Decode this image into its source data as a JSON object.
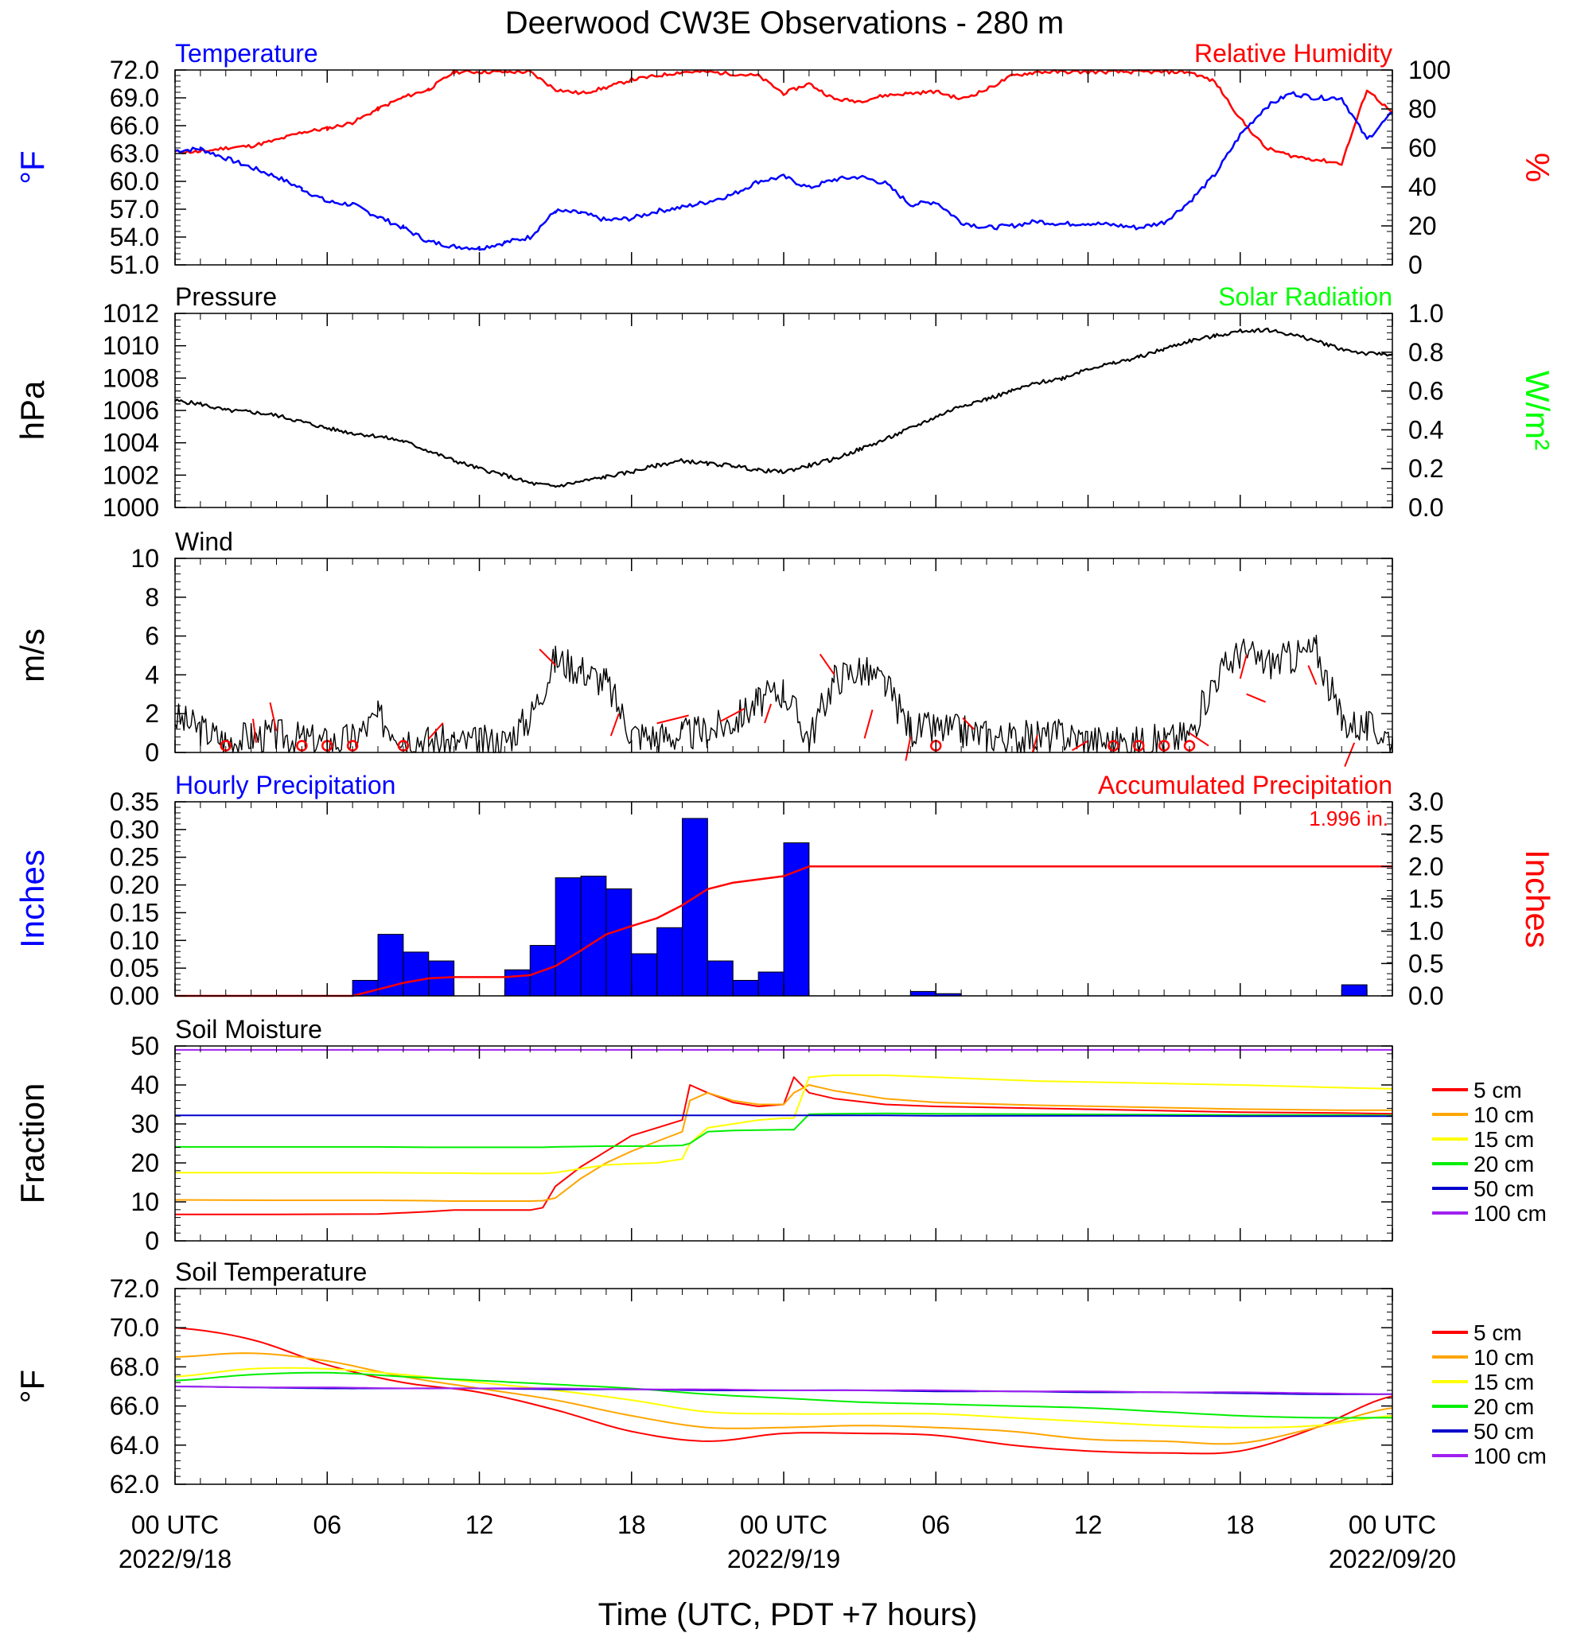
{
  "title": "Deerwood CW3E Observations - 280 m",
  "x_axis": {
    "label": "Time (UTC, PDT +7 hours)",
    "ticks": [
      {
        "hour": 0,
        "label": "00 UTC",
        "sub": "2022/9/18"
      },
      {
        "hour": 6,
        "label": "06",
        "sub": ""
      },
      {
        "hour": 12,
        "label": "12",
        "sub": ""
      },
      {
        "hour": 18,
        "label": "18",
        "sub": ""
      },
      {
        "hour": 24,
        "label": "00 UTC",
        "sub": "2022/9/19"
      },
      {
        "hour": 30,
        "label": "06",
        "sub": ""
      },
      {
        "hour": 36,
        "label": "12",
        "sub": ""
      },
      {
        "hour": 42,
        "label": "18",
        "sub": ""
      },
      {
        "hour": 48,
        "label": "00 UTC",
        "sub": "2022/09/20"
      }
    ]
  },
  "colors": {
    "temperature": "#0000ff",
    "humidity": "#ff0000",
    "pressure": "#000000",
    "solar": "#00ff00",
    "wind": "#000000",
    "wind_barb": "#ff0000",
    "hourly_precip": "#0000ff",
    "accum_precip": "#ff0000",
    "depth_5": "#ff0000",
    "depth_10": "#ffa500",
    "depth_15": "#ffff00",
    "depth_20": "#00ee00",
    "depth_50": "#0000cc",
    "depth_100": "#a020f0"
  },
  "panels": {
    "temp_rh": {
      "left_title": "Temperature",
      "right_title": "Relative Humidity",
      "left_unit": "°F",
      "right_unit": "%",
      "left_ticks": [
        "72.0",
        "69.0",
        "66.0",
        "63.0",
        "60.0",
        "57.0",
        "54.0",
        "51.0"
      ],
      "right_ticks": [
        "100",
        "80",
        "60",
        "40",
        "20",
        "0"
      ]
    },
    "pressure": {
      "left_title": "Pressure",
      "right_title": "Solar Radiation",
      "left_unit": "hPa",
      "right_unit": "W/m²",
      "left_ticks": [
        "1012",
        "1010",
        "1008",
        "1006",
        "1004",
        "1002",
        "1000"
      ],
      "right_ticks": [
        "1.0",
        "0.8",
        "0.6",
        "0.4",
        "0.2",
        "0.0"
      ]
    },
    "wind": {
      "left_title": "Wind",
      "left_unit": "m/s",
      "left_ticks": [
        "10",
        "8",
        "6",
        "4",
        "2",
        "0"
      ]
    },
    "precip": {
      "left_title": "Hourly Precipitation",
      "right_title": "Accumulated Precipitation",
      "total": "1.996 in.",
      "left_unit": "Inches",
      "right_unit": "Inches",
      "left_ticks": [
        "0.35",
        "0.30",
        "0.25",
        "0.20",
        "0.15",
        "0.10",
        "0.05",
        "0.00"
      ],
      "right_ticks": [
        "3.0",
        "2.5",
        "2.0",
        "1.5",
        "1.0",
        "0.5",
        "0.0"
      ]
    },
    "soil_moisture": {
      "left_title": "Soil Moisture",
      "left_unit": "Fraction",
      "left_ticks": [
        "50",
        "40",
        "30",
        "20",
        "10",
        "0"
      ],
      "legend": [
        "5 cm",
        "10 cm",
        "15 cm",
        "20 cm",
        "50 cm",
        "100 cm"
      ]
    },
    "soil_temp": {
      "left_title": "Soil Temperature",
      "left_unit": "°F",
      "left_ticks": [
        "72.0",
        "70.0",
        "68.0",
        "66.0",
        "64.0",
        "62.0"
      ],
      "legend": [
        "5 cm",
        "10 cm",
        "15 cm",
        "20 cm",
        "50 cm",
        "100 cm"
      ]
    }
  },
  "chart_data": [
    {
      "type": "line",
      "title": "Temperature / Relative Humidity",
      "x_hours": [
        0,
        1,
        2,
        3,
        4,
        5,
        6,
        7,
        8,
        9,
        10,
        11,
        12,
        13,
        14,
        15,
        16,
        17,
        18,
        19,
        20,
        21,
        22,
        23,
        24,
        25,
        26,
        27,
        28,
        29,
        30,
        31,
        32,
        33,
        34,
        35,
        36,
        37,
        38,
        39,
        40,
        41,
        42,
        43,
        44,
        45,
        46,
        47,
        48
      ],
      "series": [
        {
          "name": "Temperature",
          "axis": "left",
          "unit": "°F",
          "ylim": [
            51,
            72
          ],
          "values": [
            63.3,
            63.5,
            62.5,
            61.5,
            60.5,
            59.2,
            57.8,
            57.5,
            56.2,
            55.0,
            53.5,
            53.0,
            52.8,
            53.4,
            54.0,
            56.8,
            56.6,
            55.8,
            56.0,
            56.8,
            57.2,
            57.8,
            58.6,
            60.0,
            60.5,
            59.3,
            60.2,
            60.5,
            59.8,
            57.5,
            57.8,
            55.6,
            55.0,
            55.2,
            55.7,
            55.4,
            55.5,
            55.3,
            55.0,
            55.6,
            57.8,
            60.7,
            65.0,
            68.0,
            69.5,
            69.0,
            69.0,
            64.5,
            67.4
          ]
        },
        {
          "name": "Relative Humidity",
          "axis": "right",
          "unit": "%",
          "ylim": [
            0,
            100
          ],
          "values": [
            58,
            58,
            60,
            61,
            64,
            68,
            70,
            73,
            80,
            86,
            90,
            99,
            99,
            99,
            99,
            90,
            88,
            91,
            95,
            97,
            99,
            99,
            98,
            97,
            88,
            93,
            85,
            84,
            87,
            88,
            89,
            85,
            90,
            97,
            99,
            99,
            99,
            99,
            99,
            99,
            99,
            94,
            75,
            60,
            56,
            54,
            52,
            90,
            78
          ]
        }
      ]
    },
    {
      "type": "line",
      "title": "Pressure / Solar Radiation",
      "x_hours": [
        0,
        1,
        2,
        3,
        4,
        5,
        6,
        7,
        8,
        9,
        10,
        11,
        12,
        13,
        14,
        15,
        16,
        17,
        18,
        19,
        20,
        21,
        22,
        23,
        24,
        25,
        26,
        27,
        28,
        29,
        30,
        31,
        32,
        33,
        34,
        35,
        36,
        37,
        38,
        39,
        40,
        41,
        42,
        43,
        44,
        45,
        46,
        47,
        48
      ],
      "series": [
        {
          "name": "Pressure",
          "axis": "left",
          "unit": "hPa",
          "ylim": [
            1000,
            1012
          ],
          "values": [
            1006.6,
            1006.4,
            1006.0,
            1005.9,
            1005.7,
            1005.3,
            1004.9,
            1004.6,
            1004.4,
            1004.1,
            1003.5,
            1002.9,
            1002.4,
            1002.0,
            1001.5,
            1001.3,
            1001.6,
            1001.9,
            1002.2,
            1002.6,
            1002.9,
            1002.7,
            1002.6,
            1002.3,
            1002.2,
            1002.6,
            1003.0,
            1003.6,
            1004.2,
            1004.9,
            1005.6,
            1006.3,
            1006.7,
            1007.2,
            1007.7,
            1008.0,
            1008.6,
            1008.9,
            1009.3,
            1009.8,
            1010.3,
            1010.6,
            1010.9,
            1011.0,
            1010.7,
            1010.3,
            1009.8,
            1009.5,
            1009.5
          ]
        }
      ]
    },
    {
      "type": "line",
      "title": "Wind",
      "unit": "m/s",
      "ylim": [
        0,
        10
      ],
      "x_hours": [
        0,
        1,
        2,
        3,
        4,
        5,
        6,
        7,
        8,
        9,
        10,
        11,
        12,
        13,
        14,
        15,
        16,
        17,
        18,
        19,
        20,
        21,
        22,
        23,
        24,
        25,
        26,
        27,
        28,
        29,
        30,
        31,
        32,
        33,
        34,
        35,
        36,
        37,
        38,
        39,
        40,
        41,
        42,
        43,
        44,
        45,
        46,
        47,
        48
      ],
      "series": [
        {
          "name": "Wind speed",
          "values": [
            1.8,
            1.2,
            0.6,
            0.8,
            0.9,
            0.7,
            0.5,
            0.7,
            1.8,
            0.9,
            0.6,
            0.5,
            0.5,
            0.6,
            1.8,
            4.8,
            4.3,
            3.6,
            1.0,
            0.8,
            0.9,
            1.1,
            1.6,
            2.6,
            3.2,
            0.7,
            3.8,
            4.3,
            3.5,
            1.2,
            1.2,
            1.1,
            0.9,
            0.7,
            0.8,
            0.9,
            0.7,
            0.5,
            0.5,
            0.6,
            0.9,
            3.8,
            5.2,
            4.6,
            4.9,
            5.3,
            1.6,
            1.3,
            0.8
          ]
        }
      ],
      "calm_markers_hours": [
        2,
        5,
        6,
        7,
        9,
        30,
        37,
        38,
        39,
        40
      ]
    },
    {
      "type": "bar",
      "title": "Hourly Precipitation / Accumulated Precipitation",
      "x_hours": [
        0,
        1,
        2,
        3,
        4,
        5,
        6,
        7,
        8,
        9,
        10,
        11,
        12,
        13,
        14,
        15,
        16,
        17,
        18,
        19,
        20,
        21,
        22,
        23,
        24,
        25,
        26,
        27,
        28,
        29,
        30,
        31,
        32,
        33,
        34,
        35,
        36,
        37,
        38,
        39,
        40,
        41,
        42,
        43,
        44,
        45,
        46,
        47
      ],
      "series": [
        {
          "name": "Hourly Precipitation",
          "axis": "left",
          "unit": "in",
          "ylim": [
            0,
            0.35
          ],
          "values": [
            0,
            0,
            0,
            0,
            0,
            0,
            0,
            0.028,
            0.111,
            0.079,
            0.063,
            0,
            0,
            0.047,
            0.091,
            0.213,
            0.216,
            0.193,
            0.076,
            0.123,
            0.32,
            0.063,
            0.028,
            0.043,
            0.276,
            0,
            0,
            0,
            0,
            0.008,
            0.004,
            0,
            0,
            0,
            0,
            0,
            0,
            0,
            0,
            0,
            0,
            0,
            0,
            0,
            0,
            0,
            0.02,
            0
          ]
        },
        {
          "name": "Accumulated Precipitation",
          "axis": "right",
          "unit": "in",
          "ylim": [
            0,
            3
          ],
          "x_hours": [
            0,
            7,
            8,
            9,
            10,
            11,
            12,
            13,
            14,
            15,
            16,
            17,
            18,
            19,
            20,
            21,
            22,
            23,
            24,
            25,
            48
          ],
          "values": [
            0,
            0,
            0.1,
            0.2,
            0.27,
            0.29,
            0.29,
            0.29,
            0.32,
            0.46,
            0.7,
            0.95,
            1.08,
            1.2,
            1.4,
            1.65,
            1.75,
            1.8,
            1.85,
            2.0,
            2.0
          ]
        }
      ]
    },
    {
      "type": "line",
      "title": "Soil Moisture",
      "unit": "Fraction",
      "ylim": [
        0,
        50
      ],
      "x_hours": [
        0,
        4,
        8,
        10,
        11,
        12,
        13,
        14,
        14.5,
        15,
        16,
        17,
        18,
        19,
        20,
        20.3,
        21,
        22,
        23,
        24,
        24.4,
        25,
        26,
        28,
        30,
        34,
        38,
        42,
        46,
        48
      ],
      "series": [
        {
          "name": "5 cm",
          "values": [
            6.8,
            6.8,
            6.9,
            7.5,
            7.9,
            7.9,
            7.9,
            7.9,
            8.5,
            14,
            19,
            23,
            27,
            29,
            31,
            40,
            38,
            35.5,
            34.5,
            35,
            42,
            38,
            36.5,
            35,
            34.5,
            34,
            33.5,
            33,
            32.8,
            32.6
          ]
        },
        {
          "name": "10 cm",
          "values": [
            10.5,
            10.4,
            10.4,
            10.3,
            10.2,
            10.2,
            10.2,
            10.2,
            10.3,
            11,
            16,
            20,
            23,
            25.5,
            28,
            36,
            38,
            36,
            35,
            35,
            38,
            40,
            38.5,
            36.5,
            35.5,
            34.8,
            34.3,
            33.8,
            33.5,
            33.5
          ]
        },
        {
          "name": "15 cm",
          "values": [
            17.5,
            17.5,
            17.5,
            17.4,
            17.4,
            17.3,
            17.3,
            17.3,
            17.3,
            17.5,
            18.5,
            19.5,
            19.8,
            20,
            21,
            25,
            29,
            30,
            31,
            31.5,
            31.5,
            42,
            42.5,
            42.5,
            42,
            41,
            40.5,
            40,
            39.3,
            39
          ]
        },
        {
          "name": "20 cm",
          "values": [
            24.1,
            24.1,
            24.1,
            24,
            24,
            24,
            24,
            24,
            24,
            24.1,
            24.2,
            24.3,
            24.3,
            24.3,
            24.5,
            25,
            28,
            28.3,
            28.4,
            28.5,
            28.5,
            32.5,
            32.6,
            32.7,
            32.6,
            32.5,
            32.4,
            32.3,
            32.3,
            32.2
          ]
        },
        {
          "name": "50 cm",
          "values": [
            32.2,
            32.2,
            32.2,
            32.2,
            32.2,
            32.2,
            32.2,
            32.2,
            32.2,
            32.2,
            32.2,
            32.2,
            32.2,
            32.2,
            32.2,
            32.2,
            32.2,
            32.2,
            32.2,
            32.2,
            32.2,
            32.2,
            32.2,
            32.2,
            32.1,
            32.1,
            32.1,
            32,
            32,
            32
          ]
        },
        {
          "name": "100 cm",
          "values": [
            49,
            49,
            49,
            49,
            49,
            49,
            49,
            49,
            49,
            49,
            49,
            49,
            49,
            49,
            49,
            49,
            49,
            49,
            49,
            49,
            49,
            49,
            49,
            49,
            49,
            49,
            49,
            49,
            49,
            49
          ]
        }
      ]
    },
    {
      "type": "line",
      "title": "Soil Temperature",
      "unit": "°F",
      "ylim": [
        62,
        72
      ],
      "x_hours": [
        0,
        3,
        6,
        9,
        12,
        15,
        18,
        21,
        24,
        27,
        30,
        33,
        36,
        39,
        42,
        45,
        48
      ],
      "series": [
        {
          "name": "5 cm",
          "values": [
            70.0,
            69.4,
            68.1,
            67.2,
            66.7,
            65.8,
            64.7,
            64.2,
            64.6,
            64.6,
            64.5,
            64.0,
            63.7,
            63.6,
            63.7,
            64.9,
            66.5
          ]
        },
        {
          "name": "10 cm",
          "values": [
            68.5,
            68.7,
            68.3,
            67.5,
            66.9,
            66.3,
            65.5,
            64.9,
            64.9,
            65.0,
            64.9,
            64.7,
            64.3,
            64.2,
            64.1,
            64.9,
            65.9
          ]
        },
        {
          "name": "15 cm",
          "values": [
            67.5,
            67.9,
            67.9,
            67.6,
            67.2,
            66.8,
            66.3,
            65.7,
            65.6,
            65.6,
            65.6,
            65.4,
            65.2,
            65.0,
            64.9,
            65.0,
            65.5
          ]
        },
        {
          "name": "20 cm",
          "values": [
            67.3,
            67.6,
            67.7,
            67.5,
            67.3,
            67.1,
            66.9,
            66.6,
            66.4,
            66.2,
            66.1,
            66.0,
            65.9,
            65.7,
            65.5,
            65.4,
            65.4
          ]
        },
        {
          "name": "50 cm",
          "values": [
            67.0,
            66.95,
            66.9,
            66.9,
            66.9,
            66.85,
            66.85,
            66.8,
            66.8,
            66.8,
            66.75,
            66.75,
            66.7,
            66.7,
            66.65,
            66.6,
            66.6
          ]
        },
        {
          "name": "100 cm",
          "values": [
            67.0,
            66.95,
            66.95,
            66.9,
            66.9,
            66.9,
            66.85,
            66.85,
            66.8,
            66.8,
            66.8,
            66.75,
            66.75,
            66.7,
            66.7,
            66.65,
            66.6
          ]
        }
      ]
    }
  ]
}
